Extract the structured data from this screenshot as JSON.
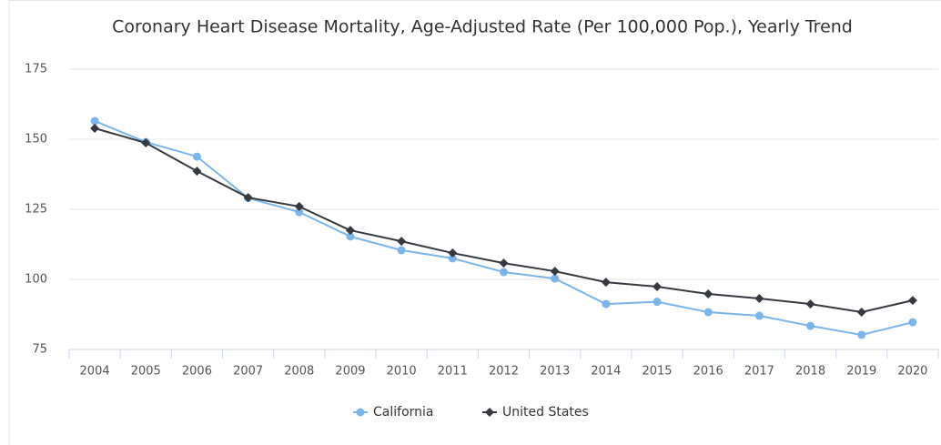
{
  "chart_data": {
    "type": "line",
    "title": "Coronary Heart Disease Mortality, Age-Adjusted Rate (Per 100,000 Pop.), Yearly Trend",
    "categories": [
      "2004",
      "2005",
      "2006",
      "2007",
      "2008",
      "2009",
      "2010",
      "2011",
      "2012",
      "2013",
      "2014",
      "2015",
      "2016",
      "2017",
      "2018",
      "2019",
      "2020"
    ],
    "series": [
      {
        "name": "California",
        "color": "#7cb5ec",
        "values": [
          156.5,
          149,
          143.8,
          129,
          124,
          115.3,
          110.4,
          107.5,
          102.6,
          100.3,
          91.2,
          92,
          88.3,
          87,
          83.4,
          80.2,
          84.7
        ]
      },
      {
        "name": "United States",
        "color": "#363a40",
        "values": [
          153.9,
          148.7,
          138.6,
          129.2,
          126,
          117.5,
          113.6,
          109.4,
          105.8,
          102.9,
          99,
          97.4,
          94.8,
          93.2,
          91.2,
          88.3,
          92.5
        ]
      }
    ],
    "ylim": [
      75,
      175
    ],
    "yticks": [
      75,
      100,
      125,
      150,
      175
    ],
    "grid": true,
    "legend": "bottom"
  }
}
